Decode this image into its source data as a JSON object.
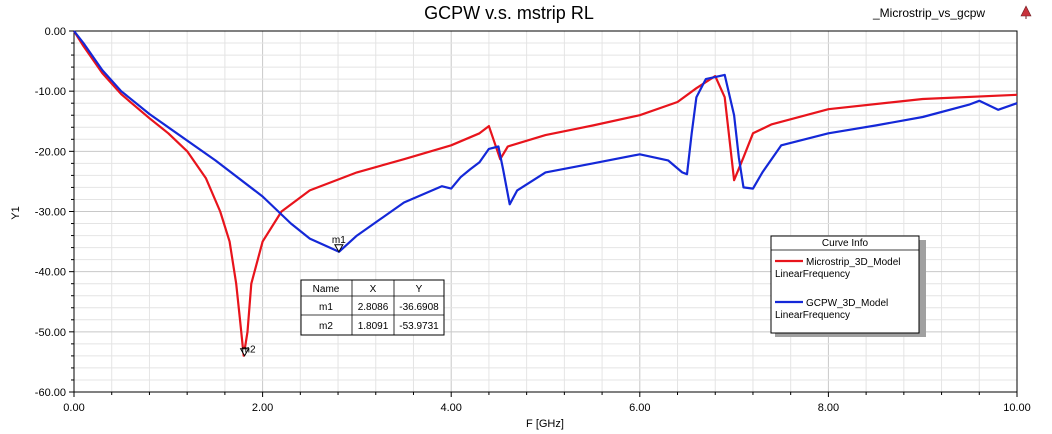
{
  "window": {
    "project_label": "_Microstrip_vs_gcpw"
  },
  "chart_data": {
    "type": "line",
    "title": "GCPW v.s. mstrip RL",
    "xlabel": "F [GHz]",
    "ylabel": "Y1",
    "xlim": [
      0,
      10
    ],
    "ylim": [
      -60,
      0
    ],
    "x_ticks": [
      "0.00",
      "2.00",
      "4.00",
      "6.00",
      "8.00",
      "10.00"
    ],
    "y_ticks": [
      "0.00",
      "-10.00",
      "-20.00",
      "-30.00",
      "-40.00",
      "-50.00",
      "-60.00"
    ],
    "grid": true,
    "series": [
      {
        "name": "Microstrip_3D_Model",
        "sub": "LinearFrequency",
        "color": "#e8141c",
        "points": [
          [
            0,
            0
          ],
          [
            0.1,
            -2.5
          ],
          [
            0.3,
            -7
          ],
          [
            0.5,
            -10.5
          ],
          [
            0.8,
            -14.5
          ],
          [
            1.0,
            -17
          ],
          [
            1.2,
            -20
          ],
          [
            1.4,
            -24.5
          ],
          [
            1.55,
            -30
          ],
          [
            1.65,
            -35
          ],
          [
            1.72,
            -42
          ],
          [
            1.76,
            -48
          ],
          [
            1.8,
            -53.97
          ],
          [
            1.84,
            -50
          ],
          [
            1.88,
            -42
          ],
          [
            2.0,
            -35
          ],
          [
            2.2,
            -30
          ],
          [
            2.5,
            -26.5
          ],
          [
            3.0,
            -23.5
          ],
          [
            3.5,
            -21.3
          ],
          [
            4.0,
            -19
          ],
          [
            4.3,
            -17
          ],
          [
            4.4,
            -15.8
          ],
          [
            4.48,
            -19.5
          ],
          [
            4.52,
            -21.3
          ],
          [
            4.6,
            -19.2
          ],
          [
            5.0,
            -17.3
          ],
          [
            5.5,
            -15.7
          ],
          [
            6.0,
            -14
          ],
          [
            6.4,
            -11.8
          ],
          [
            6.6,
            -9.5
          ],
          [
            6.8,
            -7.5
          ],
          [
            6.9,
            -11
          ],
          [
            7.0,
            -24.8
          ],
          [
            7.1,
            -21
          ],
          [
            7.2,
            -17
          ],
          [
            7.4,
            -15.5
          ],
          [
            8.0,
            -13
          ],
          [
            9.0,
            -11.3
          ],
          [
            10.0,
            -10.6
          ]
        ]
      },
      {
        "name": "GCPW_3D_Model",
        "sub": "LinearFrequency",
        "color": "#1428d8",
        "points": [
          [
            0,
            0
          ],
          [
            0.1,
            -2
          ],
          [
            0.3,
            -6.5
          ],
          [
            0.5,
            -10
          ],
          [
            0.8,
            -13.8
          ],
          [
            1.0,
            -16
          ],
          [
            1.5,
            -21.5
          ],
          [
            2.0,
            -27.5
          ],
          [
            2.3,
            -32
          ],
          [
            2.5,
            -34.5
          ],
          [
            2.81,
            -36.69
          ],
          [
            3.0,
            -34
          ],
          [
            3.5,
            -28.5
          ],
          [
            3.9,
            -25.8
          ],
          [
            4.0,
            -26.2
          ],
          [
            4.1,
            -24.3
          ],
          [
            4.2,
            -23
          ],
          [
            4.3,
            -21.8
          ],
          [
            4.4,
            -19.6
          ],
          [
            4.5,
            -19.2
          ],
          [
            4.55,
            -23
          ],
          [
            4.62,
            -28.8
          ],
          [
            4.7,
            -26.5
          ],
          [
            5.0,
            -23.5
          ],
          [
            5.5,
            -22
          ],
          [
            6.0,
            -20.5
          ],
          [
            6.3,
            -21.5
          ],
          [
            6.45,
            -23.5
          ],
          [
            6.5,
            -23.8
          ],
          [
            6.55,
            -17
          ],
          [
            6.6,
            -11
          ],
          [
            6.7,
            -8
          ],
          [
            6.9,
            -7.3
          ],
          [
            7.0,
            -14
          ],
          [
            7.05,
            -21
          ],
          [
            7.1,
            -26
          ],
          [
            7.2,
            -26.2
          ],
          [
            7.3,
            -23.5
          ],
          [
            7.5,
            -19
          ],
          [
            8.0,
            -17
          ],
          [
            8.5,
            -15.7
          ],
          [
            9.0,
            -14.3
          ],
          [
            9.5,
            -12.2
          ],
          [
            9.6,
            -11.6
          ],
          [
            9.8,
            -13.1
          ],
          [
            10.0,
            -12
          ]
        ]
      }
    ],
    "markers": [
      {
        "name": "m1",
        "x": 2.8086,
        "y": -36.6908
      },
      {
        "name": "m2",
        "x": 1.8091,
        "y": -53.9731
      }
    ],
    "marker_table": {
      "headers": [
        "Name",
        "X",
        "Y"
      ],
      "rows": [
        [
          "m1",
          "2.8086",
          "-36.6908"
        ],
        [
          "m2",
          "1.8091",
          "-53.9731"
        ]
      ]
    },
    "legend": {
      "title": "Curve Info",
      "placement": "right"
    }
  }
}
